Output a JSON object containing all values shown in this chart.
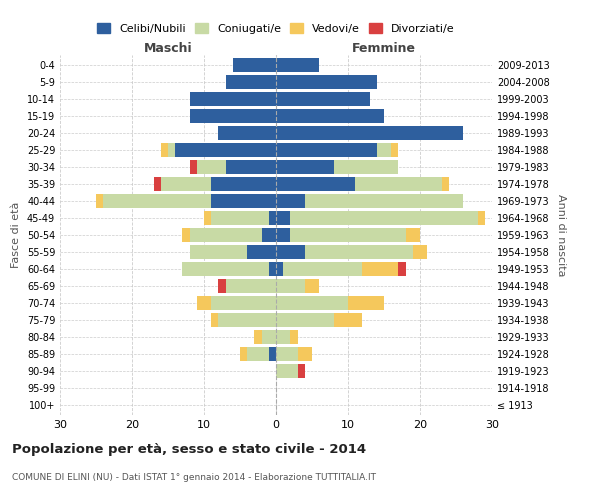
{
  "age_groups": [
    "100+",
    "95-99",
    "90-94",
    "85-89",
    "80-84",
    "75-79",
    "70-74",
    "65-69",
    "60-64",
    "55-59",
    "50-54",
    "45-49",
    "40-44",
    "35-39",
    "30-34",
    "25-29",
    "20-24",
    "15-19",
    "10-14",
    "5-9",
    "0-4"
  ],
  "birth_years": [
    "≤ 1913",
    "1914-1918",
    "1919-1923",
    "1924-1928",
    "1929-1933",
    "1934-1938",
    "1939-1943",
    "1944-1948",
    "1949-1953",
    "1954-1958",
    "1959-1963",
    "1964-1968",
    "1969-1973",
    "1974-1978",
    "1979-1983",
    "1984-1988",
    "1989-1993",
    "1994-1998",
    "1999-2003",
    "2004-2008",
    "2009-2013"
  ],
  "maschi": {
    "celibi": [
      0,
      0,
      0,
      1,
      0,
      0,
      0,
      0,
      1,
      4,
      2,
      1,
      9,
      9,
      7,
      14,
      8,
      12,
      12,
      7,
      6
    ],
    "coniugati": [
      0,
      0,
      0,
      3,
      2,
      8,
      9,
      7,
      12,
      8,
      10,
      8,
      15,
      7,
      4,
      1,
      0,
      0,
      0,
      0,
      0
    ],
    "vedovi": [
      0,
      0,
      0,
      1,
      1,
      1,
      2,
      0,
      0,
      0,
      1,
      1,
      1,
      0,
      0,
      1,
      0,
      0,
      0,
      0,
      0
    ],
    "divorziati": [
      0,
      0,
      0,
      0,
      0,
      0,
      0,
      1,
      0,
      0,
      0,
      0,
      0,
      1,
      1,
      0,
      0,
      0,
      0,
      0,
      0
    ]
  },
  "femmine": {
    "nubili": [
      0,
      0,
      0,
      0,
      0,
      0,
      0,
      0,
      1,
      4,
      2,
      2,
      4,
      11,
      8,
      14,
      26,
      15,
      13,
      14,
      6
    ],
    "coniugate": [
      0,
      0,
      3,
      3,
      2,
      8,
      10,
      4,
      11,
      15,
      16,
      26,
      22,
      12,
      9,
      2,
      0,
      0,
      0,
      0,
      0
    ],
    "vedove": [
      0,
      0,
      0,
      2,
      1,
      4,
      5,
      2,
      5,
      2,
      2,
      1,
      0,
      1,
      0,
      1,
      0,
      0,
      0,
      0,
      0
    ],
    "divorziate": [
      0,
      0,
      1,
      0,
      0,
      0,
      0,
      0,
      1,
      0,
      0,
      0,
      0,
      0,
      0,
      0,
      0,
      0,
      0,
      0,
      0
    ]
  },
  "colors": {
    "celibi": "#2e5f9e",
    "coniugati": "#c8daa5",
    "vedovi": "#f5c85c",
    "divorziati": "#d94040"
  },
  "xlim": 30,
  "title": "Popolazione per età, sesso e stato civile - 2014",
  "subtitle": "COMUNE DI ELINI (NU) - Dati ISTAT 1° gennaio 2014 - Elaborazione TUTTITALIA.IT",
  "xlabel_left": "Maschi",
  "xlabel_right": "Femmine",
  "ylabel_left": "Fasce di età",
  "ylabel_right": "Anni di nascita",
  "legend_labels": [
    "Celibi/Nubili",
    "Coniugati/e",
    "Vedovi/e",
    "Divorziati/e"
  ],
  "bg_color": "#ffffff"
}
